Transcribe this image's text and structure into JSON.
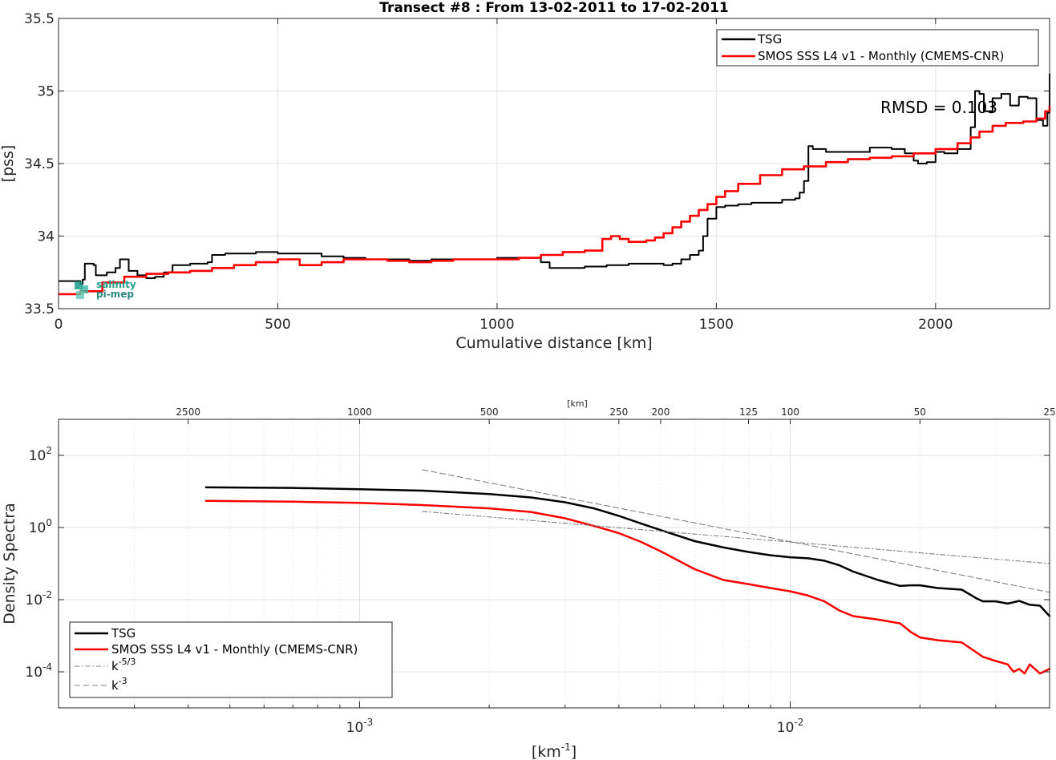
{
  "chart_data": [
    {
      "type": "line",
      "title": "Transect #8 : From 13-02-2011 to 17-02-2011",
      "xlabel": "Cumulative distance [km]",
      "ylabel": "[pss]",
      "xlim": [
        0,
        2260
      ],
      "ylim": [
        33.5,
        35.5
      ],
      "x_ticks": [
        "0",
        "500",
        "1000",
        "1500",
        "2000"
      ],
      "y_ticks": [
        "33.5",
        "34",
        "34.5",
        "35",
        "35.5"
      ],
      "grid": true,
      "legend_position": "top-right",
      "annotation": "RMSD = 0.103",
      "watermark": {
        "line1": "salinity",
        "line2": "pi-mep"
      },
      "series": [
        {
          "name": "TSG",
          "color": "#000000",
          "x": [
            0,
            30,
            50,
            55,
            60,
            80,
            85,
            110,
            130,
            140,
            150,
            160,
            180,
            200,
            220,
            240,
            260,
            270,
            300,
            340,
            350,
            380,
            400,
            450,
            500,
            550,
            600,
            650,
            700,
            750,
            800,
            850,
            900,
            950,
            1000,
            1050,
            1100,
            1120,
            1150,
            1200,
            1250,
            1280,
            1300,
            1350,
            1380,
            1400,
            1420,
            1440,
            1460,
            1470,
            1480,
            1500,
            1520,
            1550,
            1580,
            1600,
            1650,
            1680,
            1690,
            1700,
            1710,
            1720,
            1750,
            1800,
            1850,
            1900,
            1930,
            1950,
            1960,
            1980,
            2000,
            2020,
            2050,
            2080,
            2090,
            2100,
            2110,
            2130,
            2150,
            2170,
            2190,
            2210,
            2230,
            2245,
            2255,
            2260
          ],
          "values": [
            33.69,
            33.69,
            33.67,
            33.7,
            33.81,
            33.8,
            33.73,
            33.75,
            33.78,
            33.84,
            33.84,
            33.76,
            33.73,
            33.71,
            33.72,
            33.75,
            33.8,
            33.8,
            33.81,
            33.82,
            33.87,
            33.88,
            33.88,
            33.89,
            33.88,
            33.88,
            33.86,
            33.85,
            33.84,
            33.84,
            33.83,
            33.84,
            33.84,
            33.84,
            33.85,
            33.85,
            33.82,
            33.78,
            33.78,
            33.79,
            33.8,
            33.8,
            33.81,
            33.81,
            33.8,
            33.81,
            33.84,
            33.87,
            33.9,
            34.0,
            34.12,
            34.2,
            34.21,
            34.22,
            34.23,
            34.23,
            34.25,
            34.26,
            34.3,
            34.38,
            34.62,
            34.6,
            34.58,
            34.58,
            34.61,
            34.6,
            34.57,
            34.52,
            34.5,
            34.51,
            34.58,
            34.57,
            34.6,
            34.75,
            35.0,
            34.98,
            34.86,
            34.95,
            34.98,
            34.9,
            34.96,
            34.95,
            34.8,
            34.76,
            34.85,
            35.12
          ]
        },
        {
          "name": "SMOS SSS L4 v1 - Monthly (CMEMS-CNR)",
          "color": "#ff0000",
          "x": [
            0,
            50,
            100,
            150,
            200,
            250,
            300,
            350,
            400,
            450,
            500,
            550,
            600,
            650,
            700,
            750,
            800,
            850,
            900,
            950,
            1000,
            1050,
            1100,
            1150,
            1200,
            1235,
            1240,
            1260,
            1280,
            1300,
            1320,
            1340,
            1360,
            1380,
            1400,
            1420,
            1440,
            1460,
            1480,
            1500,
            1520,
            1550,
            1600,
            1650,
            1700,
            1750,
            1800,
            1850,
            1900,
            1950,
            2000,
            2050,
            2080,
            2100,
            2130,
            2160,
            2200,
            2230,
            2250,
            2260
          ],
          "values": [
            33.6,
            33.62,
            33.68,
            33.72,
            33.74,
            33.75,
            33.76,
            33.78,
            33.8,
            33.82,
            33.84,
            33.8,
            33.82,
            33.84,
            33.84,
            33.83,
            33.82,
            33.83,
            33.84,
            33.84,
            33.84,
            33.85,
            33.87,
            33.89,
            33.9,
            33.9,
            33.98,
            34.0,
            33.98,
            33.96,
            33.96,
            33.97,
            33.99,
            34.02,
            34.06,
            34.1,
            34.14,
            34.18,
            34.22,
            34.27,
            34.31,
            34.36,
            34.42,
            34.46,
            34.48,
            34.51,
            34.53,
            34.54,
            34.55,
            34.57,
            34.6,
            34.64,
            34.68,
            34.72,
            34.76,
            34.78,
            34.79,
            34.81,
            34.86,
            34.9
          ]
        }
      ]
    },
    {
      "type": "line",
      "title": "",
      "xlabel": "[km-1]",
      "xlabel_base": "[km",
      "xlabel_exp": "-1",
      "xlabel_end": "]",
      "ylabel": "Density Spectra",
      "x_scale": "log",
      "y_scale": "log",
      "xlim": [
        0.0002,
        0.04
      ],
      "ylim": [
        1e-05,
        1000
      ],
      "x_ticks": [
        {
          "base": "10",
          "exp": "-3",
          "value": 0.001
        },
        {
          "base": "10",
          "exp": "-2",
          "value": 0.01
        }
      ],
      "y_ticks": [
        {
          "base": "10",
          "exp": "2",
          "value": 100
        },
        {
          "base": "10",
          "exp": "0",
          "value": 1
        },
        {
          "base": "10",
          "exp": "-2",
          "value": 0.01
        },
        {
          "base": "10",
          "exp": "-4",
          "value": 0.0001
        }
      ],
      "top_axis_label": "[km]",
      "top_axis_ticks": [
        {
          "label": "2500",
          "km": 2500
        },
        {
          "label": "1000",
          "km": 1000
        },
        {
          "label": "500",
          "km": 500
        },
        {
          "label": "250",
          "km": 250
        },
        {
          "label": "200",
          "km": 200
        },
        {
          "label": "125",
          "km": 125
        },
        {
          "label": "100",
          "km": 100
        },
        {
          "label": "50",
          "km": 50
        },
        {
          "label": "25",
          "km": 25
        }
      ],
      "grid": true,
      "legend_position": "bottom-left",
      "series": [
        {
          "name": "TSG",
          "color": "#000000",
          "style": "solid",
          "x": [
            0.00044,
            0.0007,
            0.001,
            0.0014,
            0.002,
            0.0025,
            0.003,
            0.0035,
            0.004,
            0.0045,
            0.005,
            0.006,
            0.007,
            0.008,
            0.009,
            0.01,
            0.011,
            0.012,
            0.013,
            0.014,
            0.016,
            0.018,
            0.019,
            0.02,
            0.022,
            0.025,
            0.027,
            0.028,
            0.03,
            0.032,
            0.034,
            0.036,
            0.038,
            0.04
          ],
          "values": [
            13,
            12.5,
            11.5,
            10.5,
            8.5,
            6.8,
            5.0,
            3.4,
            2.1,
            1.3,
            0.85,
            0.42,
            0.28,
            0.21,
            0.17,
            0.15,
            0.14,
            0.12,
            0.09,
            0.06,
            0.035,
            0.024,
            0.025,
            0.025,
            0.021,
            0.019,
            0.011,
            0.009,
            0.009,
            0.0078,
            0.0092,
            0.0072,
            0.0068,
            0.0035
          ]
        },
        {
          "name": "SMOS SSS L4 v1 - Monthly (CMEMS-CNR)",
          "color": "#ff0000",
          "style": "solid",
          "x": [
            0.00044,
            0.0007,
            0.001,
            0.0014,
            0.002,
            0.0025,
            0.003,
            0.0035,
            0.004,
            0.0045,
            0.005,
            0.006,
            0.007,
            0.008,
            0.009,
            0.01,
            0.011,
            0.012,
            0.013,
            0.014,
            0.016,
            0.018,
            0.019,
            0.02,
            0.022,
            0.025,
            0.027,
            0.028,
            0.03,
            0.032,
            0.033,
            0.034,
            0.035,
            0.036,
            0.038,
            0.04
          ],
          "values": [
            5.5,
            5.2,
            4.8,
            4.2,
            3.4,
            2.7,
            1.8,
            1.1,
            0.7,
            0.4,
            0.22,
            0.07,
            0.035,
            0.027,
            0.021,
            0.017,
            0.013,
            0.009,
            0.005,
            0.0035,
            0.0028,
            0.0022,
            0.0013,
            0.0009,
            0.00075,
            0.00065,
            0.00035,
            0.00026,
            0.0002,
            0.00016,
            0.0001,
            0.00012,
            9e-05,
            0.00016,
            9e-05,
            0.00012
          ]
        },
        {
          "name": "k-5/3",
          "name_base": "k",
          "name_exp": "-5/3",
          "color": "#808080",
          "style": "dash-dot",
          "x": [
            0.0014,
            0.04
          ],
          "values": [
            2.8,
            0.1
          ]
        },
        {
          "name": "k-3",
          "name_base": "k",
          "name_exp": "-3",
          "color": "#808080",
          "style": "dashed",
          "x": [
            0.0014,
            0.04
          ],
          "values": [
            40,
            0.016
          ]
        }
      ]
    }
  ]
}
